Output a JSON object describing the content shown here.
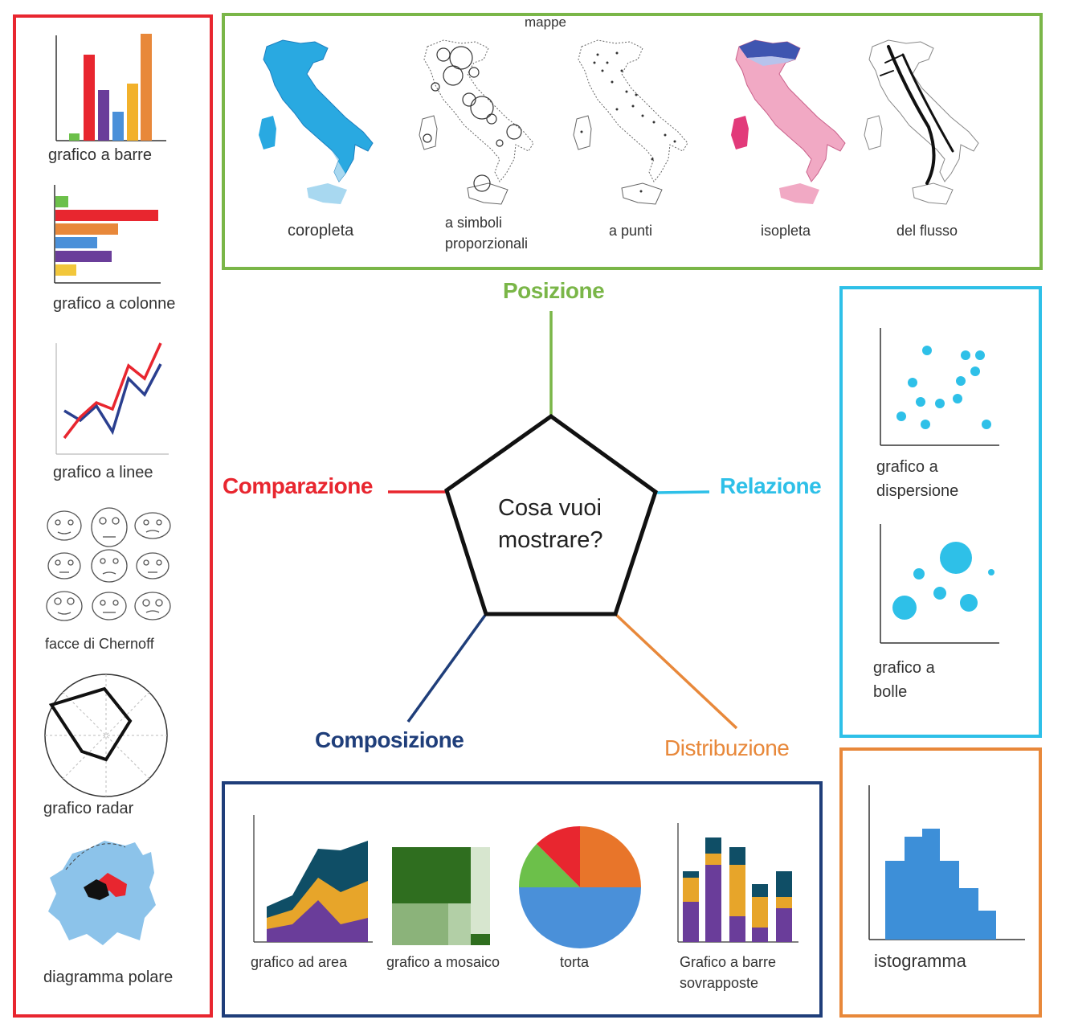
{
  "colors": {
    "comparison": "#e8262f",
    "position": "#7ab648",
    "relation": "#2ec0e8",
    "distribution": "#e8883a",
    "composition": "#1f3e7a",
    "pentagon": "#111111"
  },
  "center": {
    "line1": "Cosa vuoi",
    "line2": "mostrare?"
  },
  "categories": {
    "posizione": "Posizione",
    "comparazione": "Comparazione",
    "relazione": "Relazione",
    "composizione": "Composizione",
    "distribuzione": "Distribuzione"
  },
  "maps": {
    "title": "mappe",
    "items": [
      "coropleta",
      "a simboli",
      "proporzionali",
      "a punti",
      "isopleta",
      "del flusso"
    ]
  },
  "comparison_charts": {
    "bar": "grafico a barre",
    "column": "grafico a colonne",
    "line": "grafico a linee",
    "chernoff": "facce di Chernoff",
    "radar": "grafico radar",
    "polar": "diagramma polare"
  },
  "relation_charts": {
    "scatter_1": "grafico a",
    "scatter_2": "dispersione",
    "bubble_1": "grafico a",
    "bubble_2": "bolle"
  },
  "distribution_charts": {
    "histogram": "istogramma"
  },
  "composition_charts": {
    "area": "grafico ad area",
    "mosaic": "grafico a mosaico",
    "pie": "torta",
    "stacked_1": "Grafico a barre",
    "stacked_2": "sovrapposte"
  }
}
